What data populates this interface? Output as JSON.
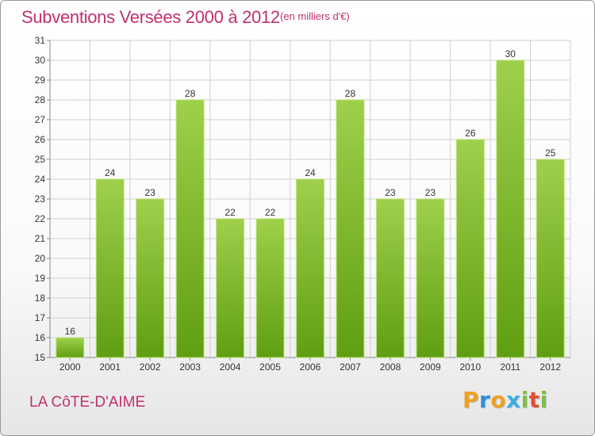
{
  "header": {
    "title": "Subventions Versées 2000 à 2012",
    "subtitle": "(en milliers d'€)"
  },
  "footer": {
    "commune": "LA CôTE-D'AIME",
    "logo_letters": [
      {
        "char": "P",
        "color": "#f0a020"
      },
      {
        "char": "r",
        "color": "#2f8fd8"
      },
      {
        "char": "o",
        "color": "#f0a020"
      },
      {
        "char": "x",
        "color": "#3cb0e0"
      },
      {
        "char": "i",
        "color": "#7fc040"
      },
      {
        "char": "t",
        "color": "#e05030"
      },
      {
        "char": "i",
        "color": "#7fc040"
      }
    ]
  },
  "colors": {
    "accent": "#c0306f",
    "bar_top": "#9fd04c",
    "bar_bottom": "#5f9e12",
    "grid": "#d0d0d0",
    "axis": "#888888"
  },
  "chart_data": {
    "type": "bar",
    "title": "Subventions Versées 2000 à 2012",
    "subtitle": "(en milliers d'€)",
    "categories": [
      "2000",
      "2001",
      "2002",
      "2003",
      "2004",
      "2005",
      "2006",
      "2007",
      "2008",
      "2009",
      "2010",
      "2011",
      "2012"
    ],
    "values": [
      16,
      24,
      23,
      28,
      22,
      22,
      24,
      28,
      23,
      23,
      26,
      30,
      25
    ],
    "ylim": [
      15,
      31
    ],
    "yticks": [
      15,
      16,
      17,
      18,
      19,
      20,
      21,
      22,
      23,
      24,
      25,
      26,
      27,
      28,
      29,
      30,
      31
    ],
    "grid": true,
    "data_labels": true
  }
}
